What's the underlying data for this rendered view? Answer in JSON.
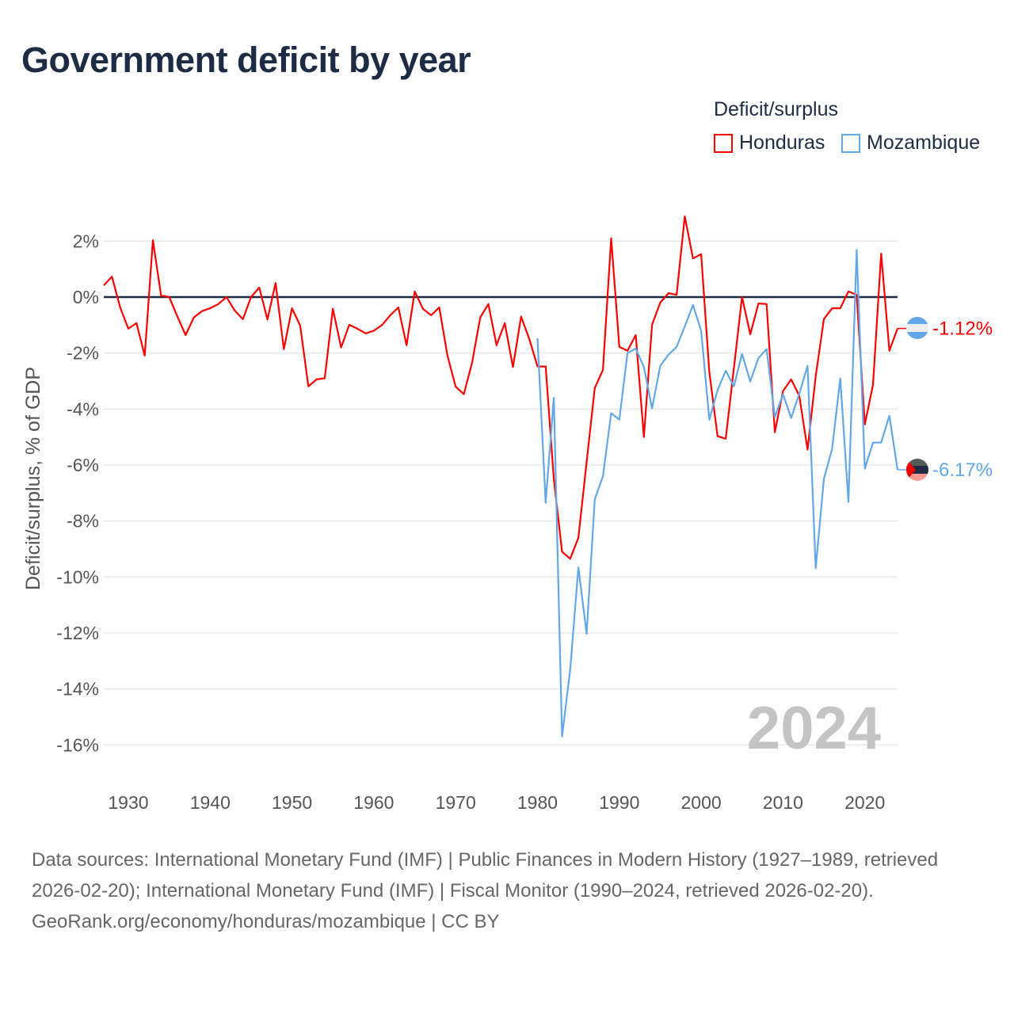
{
  "title": "Government deficit by year",
  "legend": {
    "title": "Deficit/surplus",
    "items": [
      {
        "label": "Honduras",
        "color": "#ff0000"
      },
      {
        "label": "Mozambique",
        "color": "#62a8e8"
      }
    ]
  },
  "chart_data": {
    "type": "line",
    "title": "Government deficit by year",
    "ylabel": "Deficit/surplus, % of GDP",
    "xlabel": "",
    "xlim": [
      1927,
      2024
    ],
    "ylim": [
      -17.5,
      3
    ],
    "x_ticks": [
      "1930",
      "1940",
      "1950",
      "1960",
      "1970",
      "1980",
      "1990",
      "2000",
      "2010",
      "2020"
    ],
    "y_ticks": [
      {
        "v": 2,
        "label": "2%"
      },
      {
        "v": 0,
        "label": "0%"
      },
      {
        "v": -2,
        "label": "-2%"
      },
      {
        "v": -4,
        "label": "-4%"
      },
      {
        "v": -6,
        "label": "-6%"
      },
      {
        "v": -8,
        "label": "-8%"
      },
      {
        "v": -10,
        "label": "-10%"
      },
      {
        "v": -12,
        "label": "-12%"
      },
      {
        "v": -14,
        "label": "-14%"
      },
      {
        "v": -16,
        "label": "-16%"
      }
    ],
    "grid": true,
    "watermark_year": "2024",
    "series": [
      {
        "name": "Honduras",
        "color": "#ff0000",
        "end_label": "-1.12%",
        "start": 1927,
        "values": [
          0.42,
          0.73,
          -0.37,
          -1.13,
          -0.93,
          -2.09,
          2.03,
          0.06,
          0,
          -0.7,
          -1.36,
          -0.73,
          -0.5,
          -0.4,
          -0.25,
          0,
          -0.48,
          -0.79,
          0,
          0.34,
          -0.8,
          0.5,
          -1.86,
          -0.4,
          -1.02,
          -3.19,
          -2.94,
          -2.9,
          -0.42,
          -1.8,
          -0.99,
          -1.13,
          -1.3,
          -1.2,
          -1.0,
          -0.65,
          -0.37,
          -1.72,
          0.2,
          -0.42,
          -0.65,
          -0.37,
          -2.1,
          -3.2,
          -3.47,
          -2.35,
          -0.73,
          -0.25,
          -1.72,
          -0.93,
          -2.5,
          -0.7,
          -1.5,
          -2.48,
          -2.48,
          -6.5,
          -9.1,
          -9.35,
          -8.6,
          -5.9,
          -3.25,
          -2.6,
          2.1,
          -1.78,
          -1.92,
          -1.36,
          -5.0,
          -0.99,
          -0.2,
          0.14,
          0.08,
          2.88,
          1.38,
          1.53,
          -2.68,
          -4.97,
          -5.06,
          -2.54,
          0,
          -1.33,
          -0.23,
          -0.25,
          -4.83,
          -3.36,
          -2.94,
          -3.53,
          -5.45,
          -2.83,
          -0.79,
          -0.4,
          -0.4,
          0.2,
          0.08,
          -4.55,
          -3.14,
          1.55,
          -1.92,
          -1.12
        ]
      },
      {
        "name": "Mozambique",
        "color": "#62a8e8",
        "end_label": "-6.17%",
        "start": 1980,
        "values": [
          -1.47,
          -7.35,
          -3.6,
          -15.7,
          -13.3,
          -9.66,
          -12.03,
          -7.23,
          -6.4,
          -4.15,
          -4.38,
          -2.0,
          -1.84,
          -2.5,
          -3.98,
          -2.46,
          -2.06,
          -1.78,
          -1.05,
          -0.28,
          -1.21,
          -4.38,
          -3.33,
          -2.63,
          -3.19,
          -2.03,
          -3.02,
          -2.18,
          -1.86,
          -4.29,
          -3.47,
          -4.32,
          -3.45,
          -2.46,
          -9.69,
          -6.5,
          -5.42,
          -2.91,
          -7.32,
          1.69,
          -6.13,
          -5.2,
          -5.2,
          -4.24,
          -6.17
        ]
      }
    ]
  },
  "footer": {
    "sources": "Data sources: International Monetary Fund (IMF) | Public Finances in Modern History (1927–1989, retrieved 2026-02-20); International Monetary Fund (IMF) | Fiscal Monitor (1990–2024, retrieved 2026-02-20).",
    "credit": "GeoRank.org/economy/honduras/mozambique | CC BY"
  }
}
